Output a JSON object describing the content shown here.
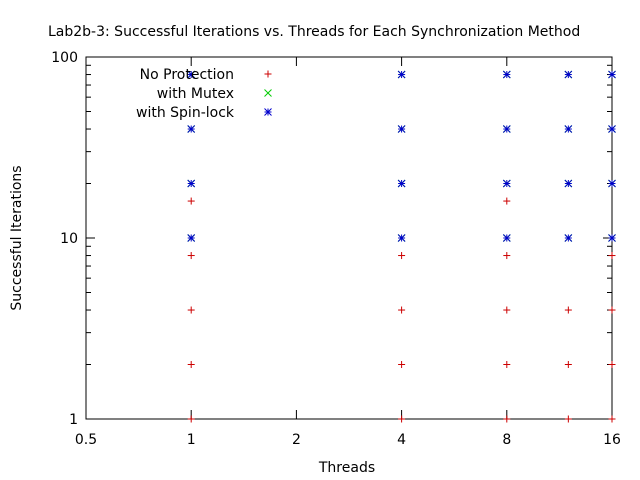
{
  "chart_data": {
    "type": "scatter",
    "title": "Lab2b-3: Successful Iterations vs. Threads for Each Synchronization Method",
    "xlabel": "Threads",
    "ylabel": "Successful Iterations",
    "x_scale": "log2",
    "y_scale": "log10",
    "xlim": [
      0.5,
      16
    ],
    "ylim": [
      1,
      100
    ],
    "x_ticks": [
      0.5,
      1,
      2,
      4,
      8,
      16
    ],
    "x_tick_labels": [
      "0.5",
      "1",
      "2",
      "4",
      "8",
      "16"
    ],
    "y_ticks": [
      1,
      10,
      100
    ],
    "y_tick_labels": [
      "1",
      "10",
      "100"
    ],
    "grid": false,
    "legend_position": "top-left",
    "series": [
      {
        "name": "No Protection",
        "color": "#cc0000",
        "marker": "plus",
        "points": [
          [
            1,
            1
          ],
          [
            1,
            2
          ],
          [
            1,
            4
          ],
          [
            1,
            8
          ],
          [
            1,
            16
          ],
          [
            4,
            1
          ],
          [
            4,
            2
          ],
          [
            4,
            4
          ],
          [
            4,
            8
          ],
          [
            8,
            1
          ],
          [
            8,
            2
          ],
          [
            8,
            4
          ],
          [
            8,
            8
          ],
          [
            8,
            16
          ],
          [
            12,
            1
          ],
          [
            12,
            2
          ],
          [
            12,
            4
          ],
          [
            16,
            1
          ],
          [
            16,
            2
          ],
          [
            16,
            4
          ],
          [
            16,
            8
          ]
        ]
      },
      {
        "name": "with Mutex",
        "color": "#00cc00",
        "marker": "cross",
        "points": [
          [
            1,
            10
          ],
          [
            1,
            20
          ],
          [
            1,
            40
          ],
          [
            1,
            80
          ],
          [
            4,
            10
          ],
          [
            4,
            20
          ],
          [
            4,
            40
          ],
          [
            4,
            80
          ],
          [
            8,
            10
          ],
          [
            8,
            20
          ],
          [
            8,
            40
          ],
          [
            8,
            80
          ],
          [
            12,
            10
          ],
          [
            12,
            20
          ],
          [
            12,
            40
          ],
          [
            12,
            80
          ],
          [
            16,
            10
          ],
          [
            16,
            20
          ],
          [
            16,
            40
          ],
          [
            16,
            80
          ]
        ]
      },
      {
        "name": "with Spin-lock",
        "color": "#0000cc",
        "marker": "star",
        "points": [
          [
            1,
            10
          ],
          [
            1,
            20
          ],
          [
            1,
            40
          ],
          [
            1,
            80
          ],
          [
            4,
            10
          ],
          [
            4,
            20
          ],
          [
            4,
            40
          ],
          [
            4,
            80
          ],
          [
            8,
            10
          ],
          [
            8,
            20
          ],
          [
            8,
            40
          ],
          [
            8,
            80
          ],
          [
            12,
            10
          ],
          [
            12,
            20
          ],
          [
            12,
            40
          ],
          [
            12,
            80
          ],
          [
            16,
            10
          ],
          [
            16,
            20
          ],
          [
            16,
            40
          ],
          [
            16,
            80
          ]
        ]
      }
    ]
  }
}
